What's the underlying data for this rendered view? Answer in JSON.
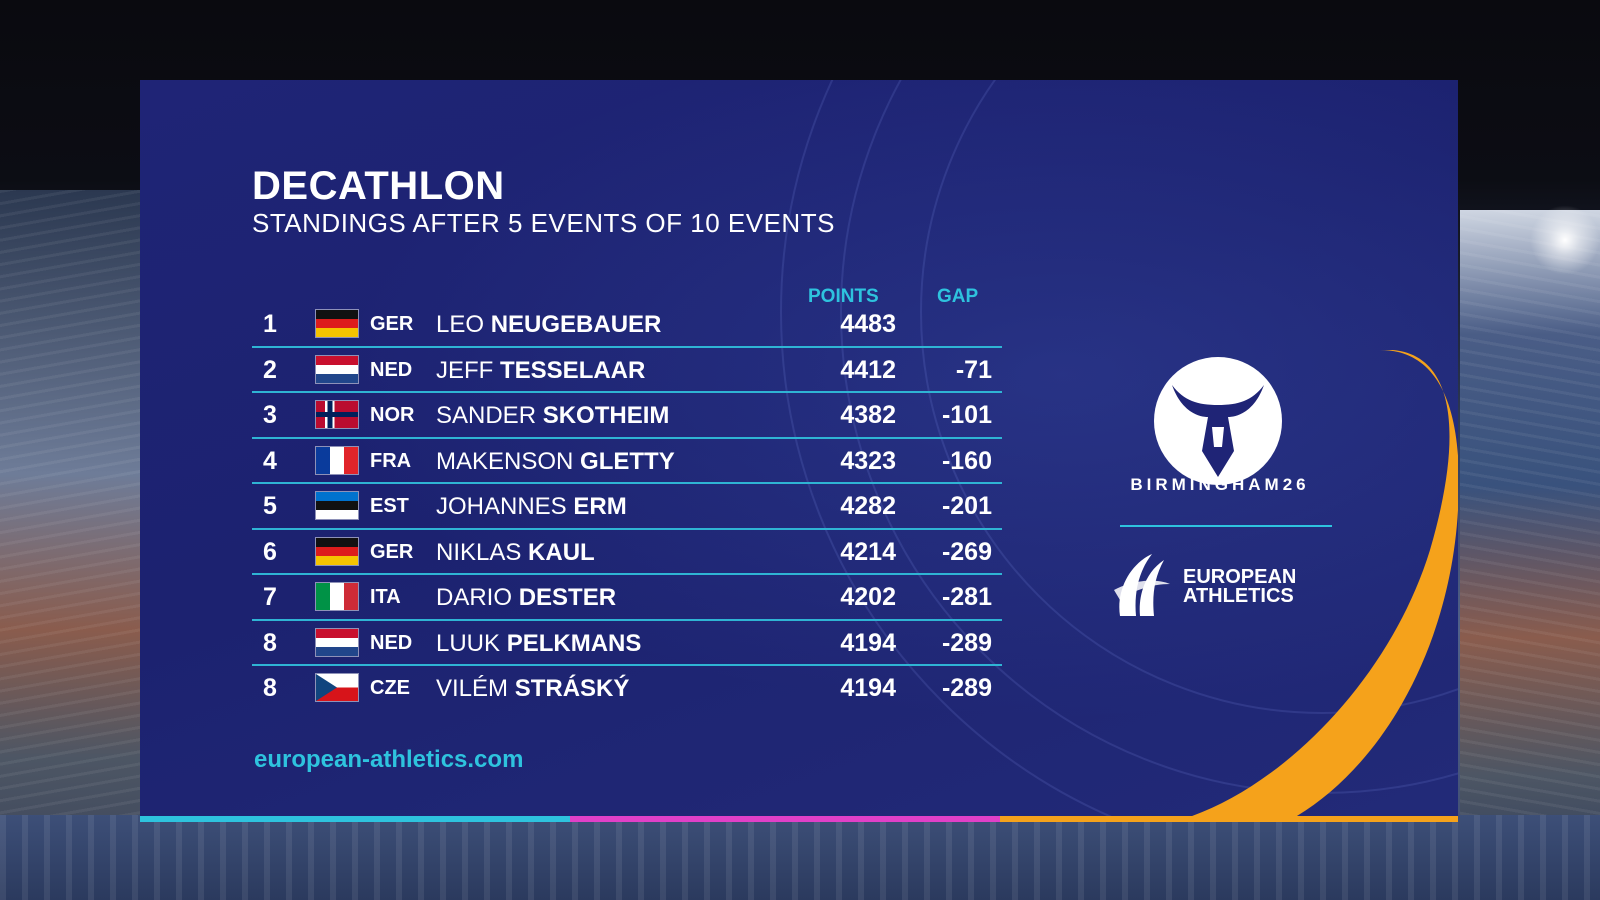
{
  "header": {
    "title": "DECATHLON",
    "subtitle": "STANDINGS AFTER 5 EVENTS OF 10 EVENTS"
  },
  "columns": {
    "points": "POINTS",
    "gap": "GAP"
  },
  "standings": [
    {
      "rank": "1",
      "nation": "GER",
      "flag": "germany",
      "first": "LEO",
      "last": "NEUGEBAUER",
      "points": "4483",
      "gap": ""
    },
    {
      "rank": "2",
      "nation": "NED",
      "flag": "netherlands",
      "first": "JEFF",
      "last": "TESSELAAR",
      "points": "4412",
      "gap": "-71"
    },
    {
      "rank": "3",
      "nation": "NOR",
      "flag": "norway",
      "first": "SANDER",
      "last": "SKOTHEIM",
      "points": "4382",
      "gap": "-101"
    },
    {
      "rank": "4",
      "nation": "FRA",
      "flag": "france",
      "first": "MAKENSON",
      "last": "GLETTY",
      "points": "4323",
      "gap": "-160"
    },
    {
      "rank": "5",
      "nation": "EST",
      "flag": "estonia",
      "first": "JOHANNES",
      "last": "ERM",
      "points": "4282",
      "gap": "-201"
    },
    {
      "rank": "6",
      "nation": "GER",
      "flag": "germany",
      "first": "NIKLAS",
      "last": "KAUL",
      "points": "4214",
      "gap": "-269"
    },
    {
      "rank": "7",
      "nation": "ITA",
      "flag": "italy",
      "first": "DARIO",
      "last": "DESTER",
      "points": "4202",
      "gap": "-281"
    },
    {
      "rank": "8",
      "nation": "NED",
      "flag": "netherlands",
      "first": "LUUK",
      "last": "PELKMANS",
      "points": "4194",
      "gap": "-289"
    },
    {
      "rank": "8",
      "nation": "CZE",
      "flag": "czechia",
      "first": "VILÉM",
      "last": "STRÁSKÝ",
      "points": "4194",
      "gap": "-289"
    }
  ],
  "website": "european-athletics.com",
  "branding": {
    "event_logo_text": "BIRMINGHAM26",
    "org_line1": "EUROPEAN",
    "org_line2": "ATHLETICS"
  },
  "colors": {
    "panel": "#1f2476",
    "accent_cyan": "#2ec3de",
    "accent_orange": "#f5a21b",
    "accent_magenta": "#e040c8"
  }
}
